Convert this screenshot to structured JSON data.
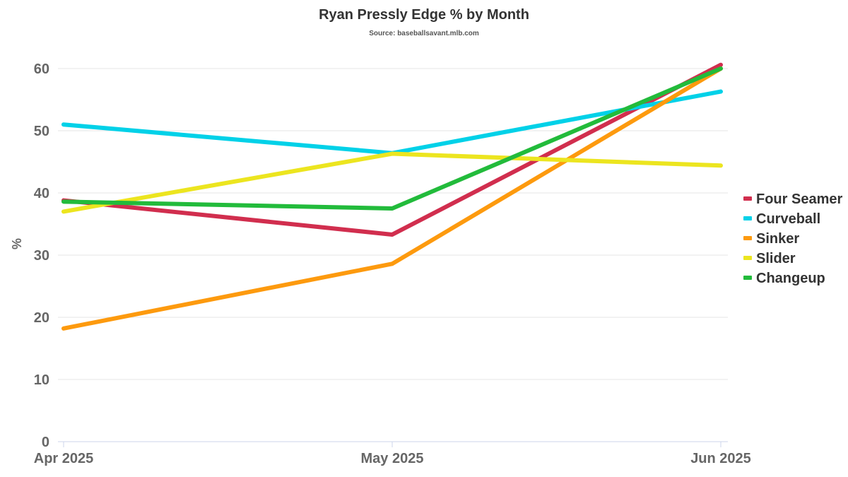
{
  "chart_data": {
    "type": "line",
    "title": "Ryan Pressly Edge % by Month",
    "subtitle": "Source: baseballsavant.mlb.com",
    "xlabel": "",
    "ylabel": "%",
    "categories": [
      "Apr 2025",
      "May 2025",
      "Jun 2025"
    ],
    "ylim": [
      0,
      60
    ],
    "yticks": [
      0,
      10,
      20,
      30,
      40,
      50,
      60
    ],
    "grid": true,
    "legend_position": "right",
    "series": [
      {
        "name": "Four Seamer",
        "color": "#d12e4e",
        "values": [
          38.8,
          33.3,
          60.6
        ]
      },
      {
        "name": "Curveball",
        "color": "#00d1e8",
        "values": [
          51.0,
          46.4,
          56.3
        ]
      },
      {
        "name": "Sinker",
        "color": "#fd9a0e",
        "values": [
          18.2,
          28.6,
          60.0
        ]
      },
      {
        "name": "Slider",
        "color": "#ece51f",
        "values": [
          37.0,
          46.3,
          44.4
        ]
      },
      {
        "name": "Changeup",
        "color": "#22bb3b",
        "values": [
          38.6,
          37.5,
          60.0
        ]
      }
    ]
  }
}
